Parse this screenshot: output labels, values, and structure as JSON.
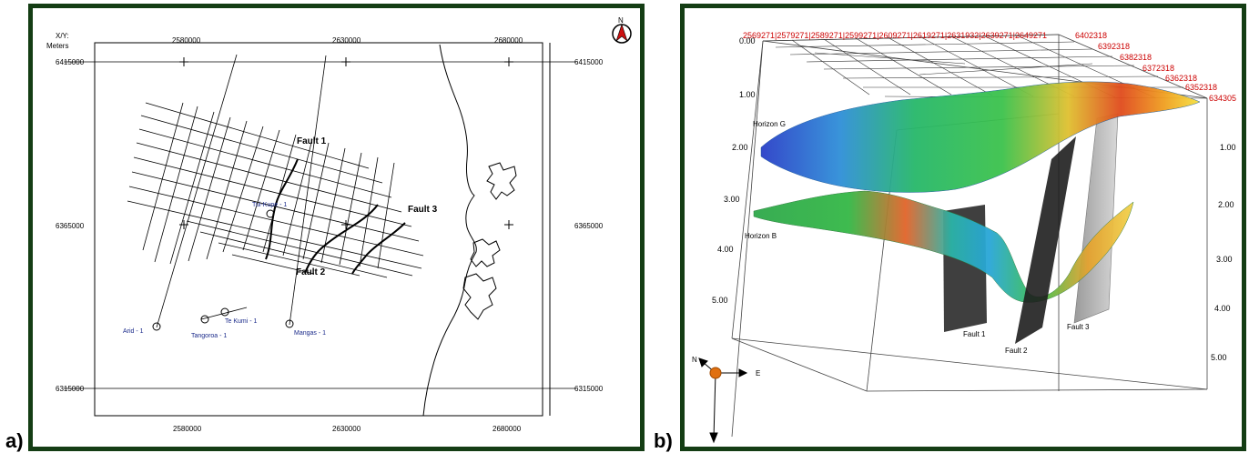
{
  "panel_a": {
    "label": "a)",
    "axis_header": [
      "X/Y:",
      "Meters"
    ],
    "x_ticks": [
      "2580000",
      "2630000",
      "2680000"
    ],
    "y_ticks": [
      "6415000",
      "6365000",
      "6315000"
    ],
    "north_symbol": "N",
    "fault_labels": [
      "Fault 1",
      "Fault 2",
      "Fault 3"
    ],
    "wells": [
      "Tui-Kupe - 1",
      "Arid - 1",
      "Te Kumi - 1",
      "Tangoroa - 1",
      "Mangas - 1"
    ]
  },
  "panel_b": {
    "label": "b)",
    "top_ticks": "2569271|2579271|2589271|2599271|2609271|2619271|2631932|2639271|2649271",
    "right_ticks": [
      "6402318",
      "6392318",
      "6382318",
      "6372318",
      "6362318",
      "6352318",
      "634305"
    ],
    "depth_left": [
      "0.00",
      "1.00",
      "2.00",
      "3.00",
      "4.00",
      "5.00"
    ],
    "depth_right": [
      "1.00",
      "2.00",
      "3.00",
      "4.00",
      "5.00"
    ],
    "horizons": [
      "Horizon G",
      "Horizon B"
    ],
    "faults": [
      "Fault 1",
      "Fault 2",
      "Fault 3"
    ],
    "compass": {
      "north": "N",
      "east": "E"
    }
  },
  "colors": {
    "frame": "#143d14",
    "tick_red": "#cc0000",
    "well_blue": "#1a2a8a"
  }
}
